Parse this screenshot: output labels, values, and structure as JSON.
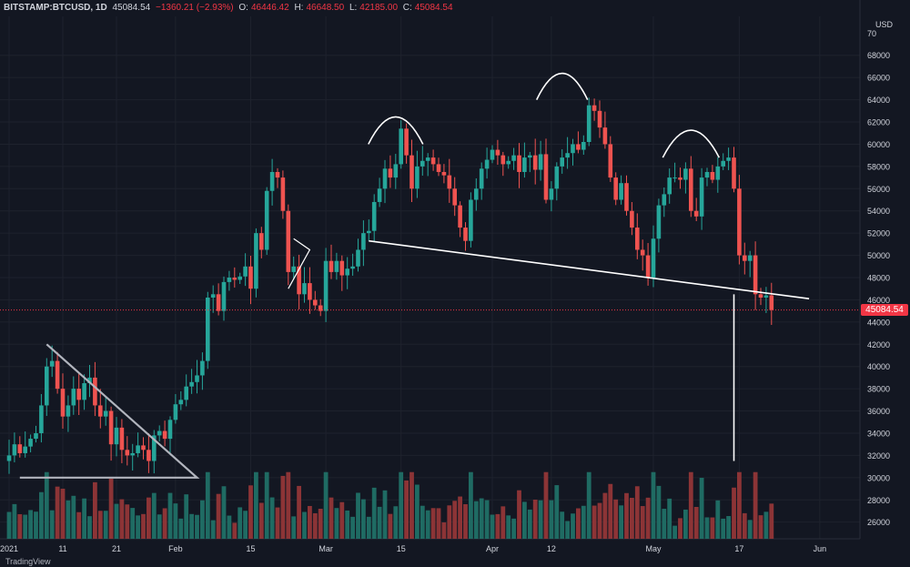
{
  "header": {
    "symbol": "BITSTAMP:BTCUSD, 1D",
    "last": "45084.54",
    "change": "−1360.21 (−2.93%)",
    "o_label": "O:",
    "o_value": "46446.42",
    "h_label": "H:",
    "h_value": "46648.50",
    "l_label": "L:",
    "l_value": "42185.00",
    "c_label": "C:",
    "c_value": "45084.54"
  },
  "currency": "USD",
  "last_price_label": "45084.54",
  "watermark": "TradingView",
  "colors": {
    "background": "#131722",
    "up": "#26a69a",
    "down": "#ef5350",
    "vol_up": "#1f6b63",
    "vol_down": "#8c3436",
    "grid": "#1e222d",
    "annotation": "#ffffff",
    "triangle": "#b2b5be",
    "last_line": "#f23645"
  },
  "chart_data": {
    "type": "candlestick",
    "title": "BITSTAMP:BTCUSD, 1D",
    "y_ticks": [
      26000,
      28000,
      30000,
      32000,
      34000,
      36000,
      38000,
      40000,
      42000,
      44000,
      46000,
      48000,
      50000,
      52000,
      54000,
      56000,
      58000,
      60000,
      62000,
      64000,
      66000,
      68000
    ],
    "y_top_label": "70",
    "ylim": [
      24500,
      71500
    ],
    "x_labels": [
      {
        "label": "2021",
        "date": "2021-01-01"
      },
      {
        "label": "11",
        "date": "2021-01-11"
      },
      {
        "label": "21",
        "date": "2021-01-21"
      },
      {
        "label": "Feb",
        "date": "2021-02-01"
      },
      {
        "label": "15",
        "date": "2021-02-15"
      },
      {
        "label": "Mar",
        "date": "2021-03-01"
      },
      {
        "label": "15",
        "date": "2021-03-15"
      },
      {
        "label": "Apr",
        "date": "2021-04-01"
      },
      {
        "label": "12",
        "date": "2021-04-12"
      },
      {
        "label": "May",
        "date": "2021-05-01"
      },
      {
        "label": "17",
        "date": "2021-05-17"
      },
      {
        "label": "Jun",
        "date": "2021-06-01"
      }
    ],
    "last_price": 45084.54,
    "grid": true,
    "closes": [
      32000,
      33000,
      32200,
      32800,
      33500,
      34000,
      36500,
      40000,
      40500,
      38000,
      35500,
      36500,
      38000,
      37000,
      38500,
      39000,
      36500,
      35500,
      36000,
      33000,
      34500,
      32500,
      32000,
      32200,
      32900,
      32500,
      31500,
      33800,
      34200,
      33500,
      35200,
      36600,
      37000,
      38200,
      38600,
      39200,
      40500,
      46200,
      46500,
      45000,
      47600,
      48000,
      47800,
      48100,
      49000,
      47000,
      52000,
      50500,
      55800,
      57500,
      57000,
      54000,
      48500,
      49000,
      46500,
      47500,
      46000,
      45500,
      45000,
      49500,
      48500,
      49500,
      48200,
      48800,
      49000,
      50500,
      52000,
      52200,
      54800,
      56000,
      57800,
      57000,
      58200,
      61400,
      59000,
      56000,
      58000,
      58500,
      58800,
      58200,
      57500,
      57200,
      56000,
      54500,
      52500,
      51300,
      55000,
      56000,
      57800,
      58600,
      59500,
      59000,
      58200,
      58500,
      59000,
      57500,
      58800,
      59000,
      57700,
      59100,
      55000,
      56000,
      58000,
      58800,
      59200,
      60000,
      59500,
      60200,
      63500,
      63000,
      61500,
      60000,
      57000,
      55000,
      56500,
      54000,
      52500,
      50500,
      50000,
      48000,
      51500,
      54500,
      55500,
      57000,
      57000,
      56800,
      57800,
      54000,
      53500,
      57000,
      57500,
      56800,
      58000,
      58500,
      58800,
      56000,
      50000,
      49500,
      50000,
      46500,
      46200,
      46400,
      45084.54
    ],
    "volume_range": [
      24500,
      30500
    ],
    "annotations": {
      "head_and_shoulders": "three arcs over the tops of mid-March, mid-April and early May",
      "neckline": [
        {
          "date": "2021-03-09",
          "price": 51300
        },
        {
          "date": "2021-05-30",
          "price": 46100
        }
      ],
      "descending_triangle_top": [
        {
          "date": "2021-01-08",
          "price": 42000
        },
        {
          "date": "2021-02-05",
          "price": 30000
        }
      ],
      "triangle_base_price": 30000,
      "target_line": {
        "date": "2021-05-16",
        "from": 46500,
        "to": 31500
      }
    }
  }
}
